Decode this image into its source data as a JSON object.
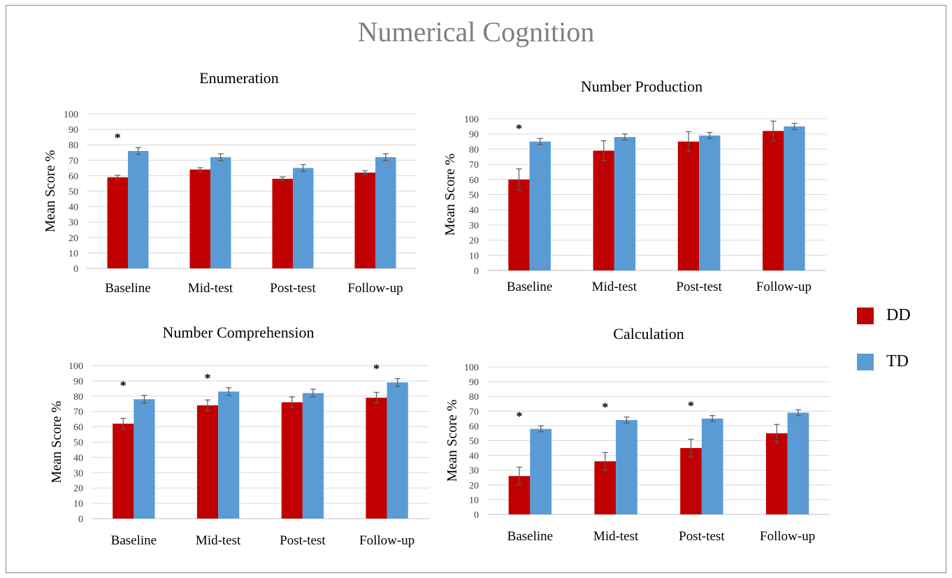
{
  "title": "Numerical Cognition",
  "colors": {
    "DD": "#C00000",
    "TD": "#5B9BD5",
    "grid": "#d9d9d9",
    "error": "#595959"
  },
  "legend": {
    "items": [
      {
        "label": "DD",
        "color": "#C00000"
      },
      {
        "label": "TD",
        "color": "#5B9BD5"
      }
    ]
  },
  "chart_data": [
    {
      "type": "bar",
      "title": "Enumeration",
      "ylabel": "Mean Score %",
      "ylim": [
        0,
        100
      ],
      "yticks": [
        "0",
        "10",
        "20",
        "30",
        "40",
        "50",
        "60",
        "70",
        "80",
        "90",
        "100"
      ],
      "categories": [
        "Baseline",
        "Mid-test",
        "Post-test",
        "Follow-up"
      ],
      "series": [
        {
          "name": "DD",
          "values": [
            59,
            64,
            58,
            62
          ],
          "errors": [
            1.2,
            1.2,
            1.2,
            1.2
          ]
        },
        {
          "name": "TD",
          "values": [
            76,
            72,
            65,
            72
          ],
          "errors": [
            2.2,
            2.2,
            2.2,
            2.2
          ]
        }
      ],
      "significance": [
        "*",
        "",
        "",
        ""
      ]
    },
    {
      "type": "bar",
      "title": "Number Production",
      "ylabel": "Mean Score %",
      "ylim": [
        0,
        100
      ],
      "yticks": [
        "0",
        "10",
        "20",
        "30",
        "40",
        "50",
        "60",
        "70",
        "80",
        "90",
        "100"
      ],
      "categories": [
        "Baseline",
        "Mid-test",
        "Post-test",
        "Follow-up"
      ],
      "series": [
        {
          "name": "DD",
          "values": [
            60,
            79,
            85,
            92
          ],
          "errors": [
            7,
            6.5,
            6.5,
            6.5
          ]
        },
        {
          "name": "TD",
          "values": [
            85,
            88,
            89,
            95
          ],
          "errors": [
            2,
            2,
            2,
            2
          ]
        }
      ],
      "significance": [
        "*",
        "",
        "",
        ""
      ]
    },
    {
      "type": "bar",
      "title": "Number Comprehension",
      "ylabel": "Mean Score %",
      "ylim": [
        0,
        100
      ],
      "yticks": [
        "0",
        "10",
        "20",
        "30",
        "40",
        "50",
        "60",
        "70",
        "80",
        "90",
        "100"
      ],
      "categories": [
        "Baseline",
        "Mid-test",
        "Post-test",
        "Follow-up"
      ],
      "series": [
        {
          "name": "DD",
          "values": [
            62,
            74,
            76,
            79
          ],
          "errors": [
            3.5,
            3.5,
            3.5,
            3.5
          ]
        },
        {
          "name": "TD",
          "values": [
            78,
            83,
            82,
            89
          ],
          "errors": [
            2.5,
            2.5,
            2.5,
            2.5
          ]
        }
      ],
      "significance": [
        "*",
        "*",
        "",
        "*"
      ]
    },
    {
      "type": "bar",
      "title": "Calculation",
      "ylabel": "Mean Score %",
      "ylim": [
        0,
        100
      ],
      "yticks": [
        "0",
        "10",
        "20",
        "30",
        "40",
        "50",
        "60",
        "70",
        "80",
        "90",
        "100"
      ],
      "categories": [
        "Baseline",
        "Mid-test",
        "Post-test",
        "Follow-up"
      ],
      "series": [
        {
          "name": "DD",
          "values": [
            26,
            36,
            45,
            55
          ],
          "errors": [
            6,
            6,
            6,
            6
          ]
        },
        {
          "name": "TD",
          "values": [
            58,
            64,
            65,
            69
          ],
          "errors": [
            2,
            2,
            2,
            2
          ]
        }
      ],
      "significance": [
        "*",
        "*",
        "*",
        ""
      ]
    }
  ]
}
